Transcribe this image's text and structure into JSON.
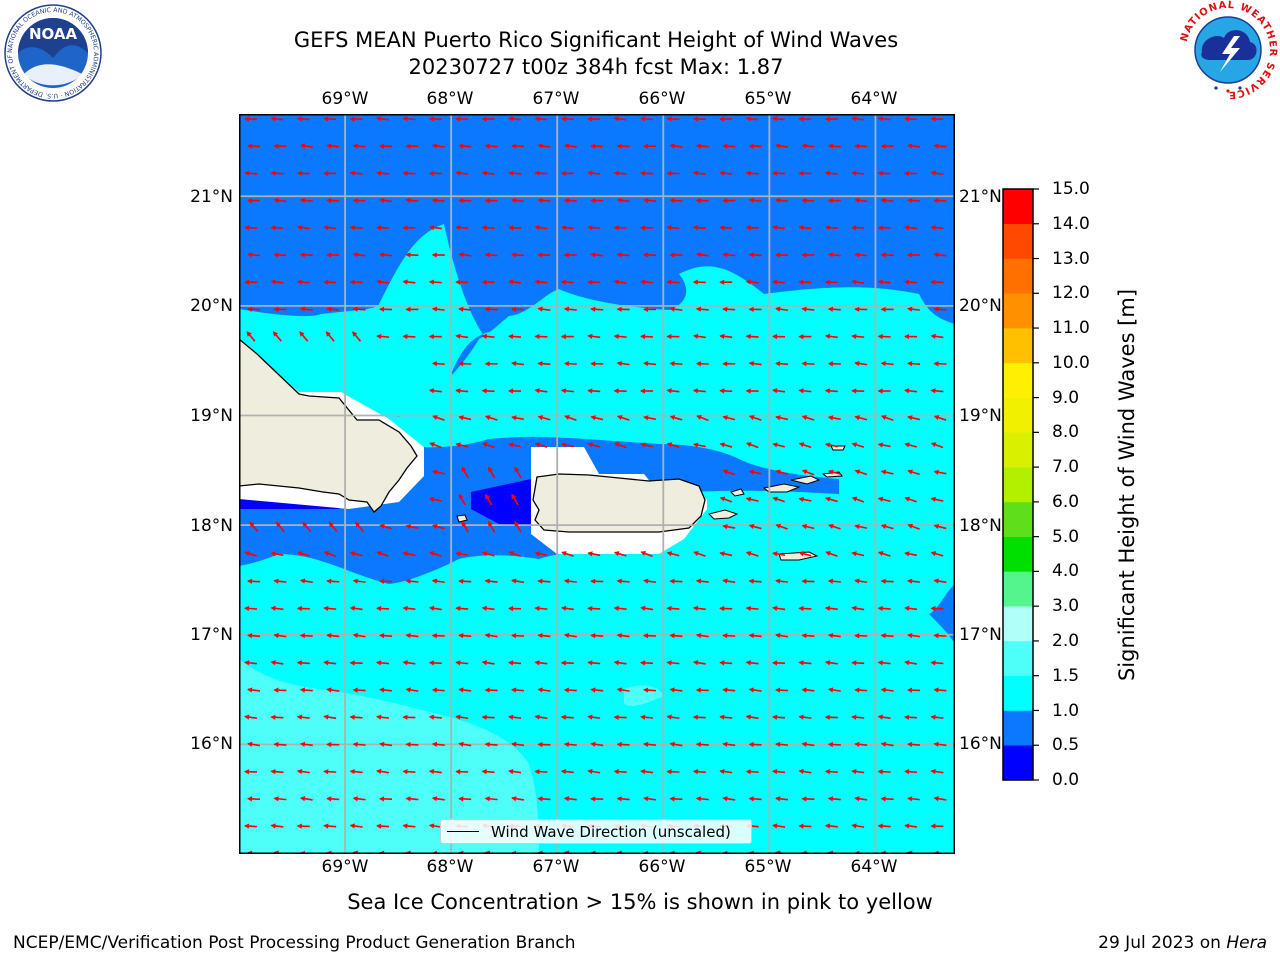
{
  "header": {
    "title_line1": "GEFS MEAN Puerto Rico Significant Height of Wind Waves",
    "title_line2": "20230727 t00z 384h fcst   Max: 1.87"
  },
  "logos": {
    "noaa_text": "NOAA",
    "noaa_ring_text": "NATIONAL OCEANIC AND ATMOSPHERIC ADMINISTRATION · U.S. DEPARTMENT OF COMMERCE",
    "nws_ring_text": "NATIONAL WEATHER SERVICE"
  },
  "map": {
    "lon_labels": [
      "69°W",
      "68°W",
      "67°W",
      "66°W",
      "65°W",
      "64°W"
    ],
    "lat_labels": [
      "21°N",
      "20°N",
      "19°N",
      "18°N",
      "17°N",
      "16°N"
    ],
    "lon_values": [
      -69,
      -68,
      -67,
      -66,
      -65,
      -64
    ],
    "lat_values": [
      21,
      20,
      19,
      18,
      17,
      16
    ],
    "extent": {
      "lon_min": -70.0,
      "lon_max": -63.25,
      "lat_min": 15.0,
      "lat_max": 21.75
    },
    "legend_label": "Wind Wave Direction (unscaled)",
    "arrow_color": "#ff0000",
    "land_color": "#efedde"
  },
  "colorbar": {
    "label": "Significant Height of Wind Waves [m]",
    "tick_labels": [
      "15.0",
      "14.0",
      "13.0",
      "12.0",
      "11.0",
      "10.0",
      "9.0",
      "8.0",
      "7.0",
      "6.0",
      "5.0",
      "4.0",
      "3.0",
      "2.0",
      "1.5",
      "1.0",
      "0.5",
      "0.0"
    ],
    "colors": [
      "#0000ff",
      "#0a78ff",
      "#00ffff",
      "#4dfff8",
      "#b0fff9",
      "#55f58e",
      "#00e000",
      "#5de01a",
      "#b2f000",
      "#d9f000",
      "#f0f000",
      "#ffef00",
      "#ffc000",
      "#ff9000",
      "#ff7000",
      "#ff4800",
      "#ff0000"
    ]
  },
  "footnote": "Sea Ice Concentration > 15% is shown in pink to yellow",
  "footer": {
    "left": "NCEP/EMC/Verification Post Processing Product Generation Branch",
    "right_date": "29 Jul 2023 on ",
    "right_host": "Hera"
  }
}
